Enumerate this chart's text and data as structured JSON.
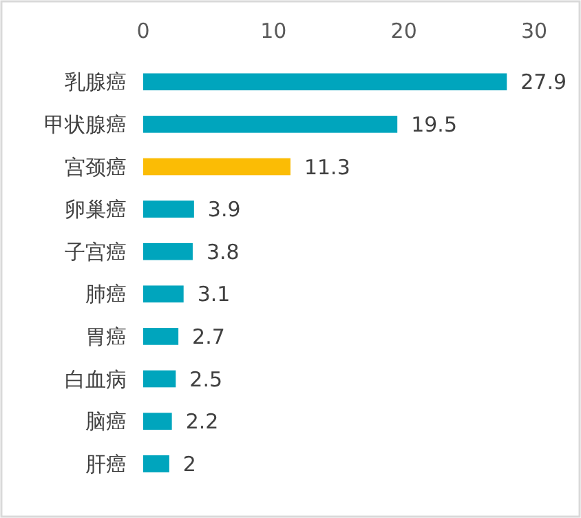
{
  "chart_data": {
    "type": "bar",
    "orientation": "horizontal",
    "categories": [
      "乳腺癌",
      "甲状腺癌",
      "宫颈癌",
      "卵巢癌",
      "子宫癌",
      "肺癌",
      "胃癌",
      "白血病",
      "脑癌",
      "肝癌"
    ],
    "values": [
      27.9,
      19.5,
      11.3,
      3.9,
      3.8,
      3.1,
      2.7,
      2.5,
      2.2,
      2
    ],
    "colors": [
      "#00a5bd",
      "#00a5bd",
      "#fbbc05",
      "#00a5bd",
      "#00a5bd",
      "#00a5bd",
      "#00a5bd",
      "#00a5bd",
      "#00a5bd",
      "#00a5bd"
    ],
    "xlim": [
      0,
      30
    ],
    "xticks": [
      0,
      10,
      20,
      30
    ],
    "data_labels": true
  }
}
